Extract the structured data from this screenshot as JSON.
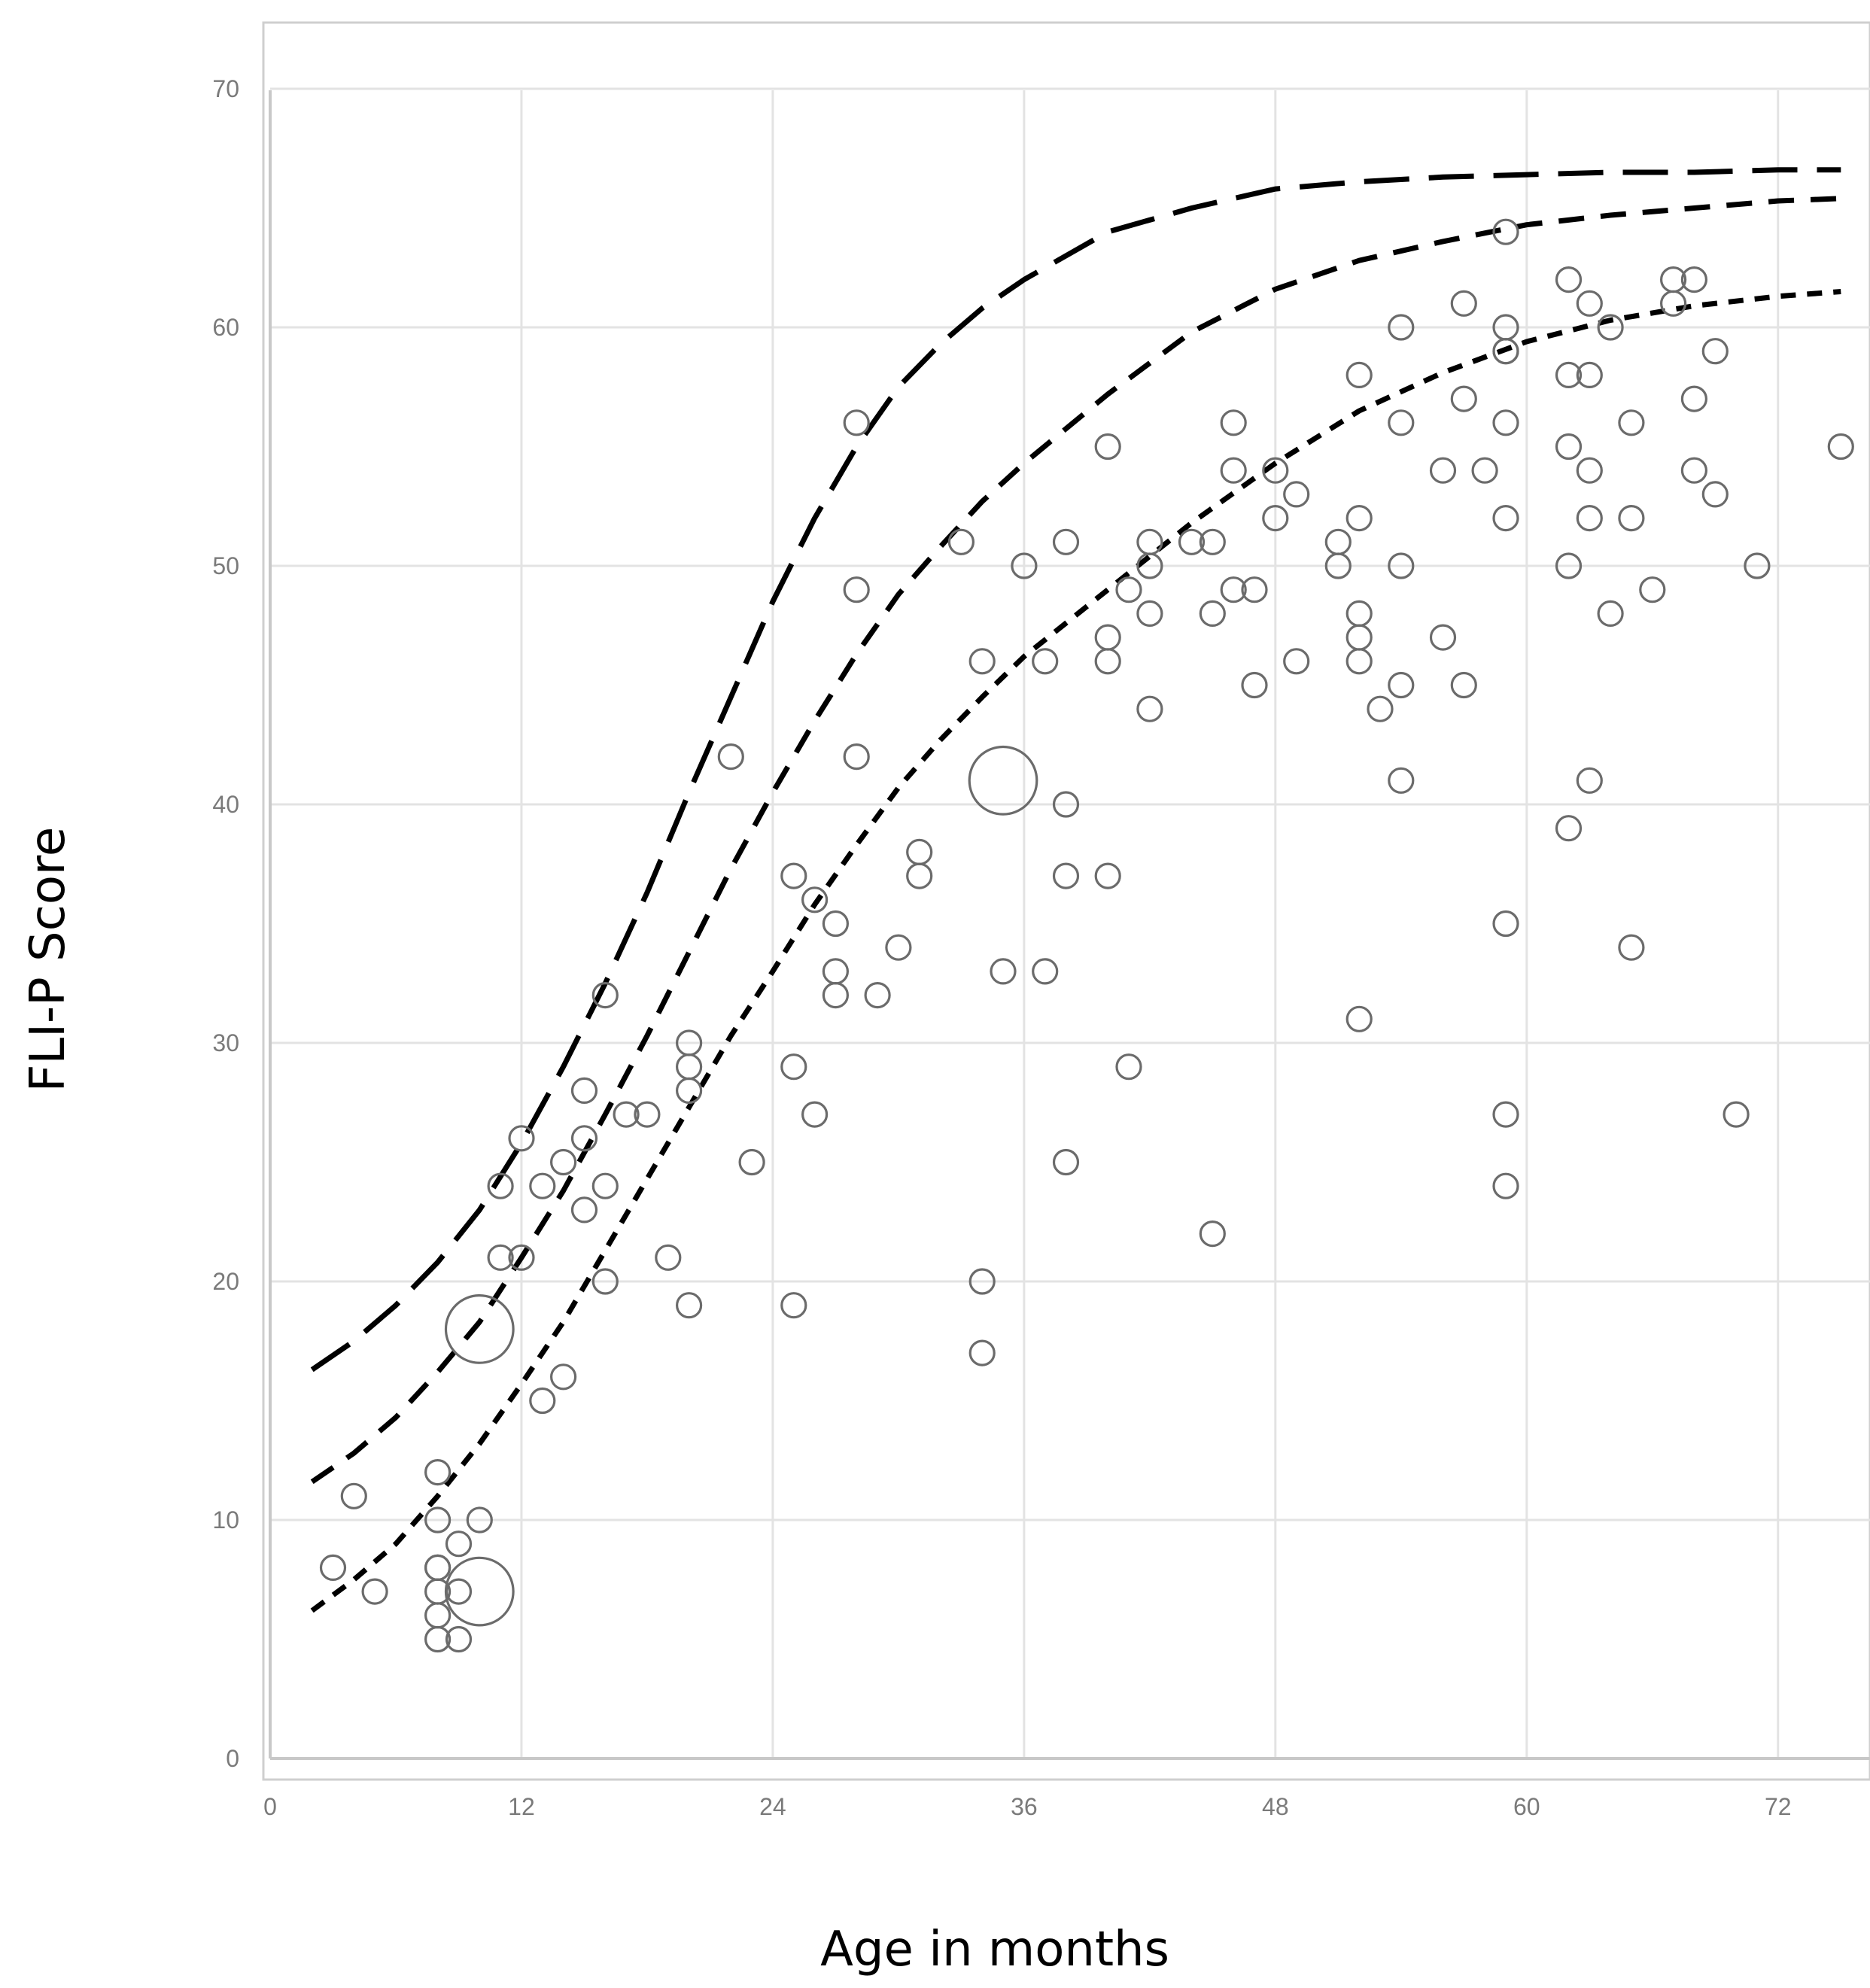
{
  "chart_data": {
    "type": "scatter",
    "title": "",
    "xlabel": "Age in months",
    "ylabel": "FLI-P Score",
    "xlim": [
      0,
      75
    ],
    "ylim": [
      0,
      70
    ],
    "x_ticks": [
      0,
      12,
      24,
      36,
      48,
      60,
      72
    ],
    "y_ticks": [
      0,
      10,
      20,
      30,
      40,
      50,
      60,
      70
    ],
    "grid": true,
    "legend": "none",
    "colors": {
      "marker": "#6b6b6b",
      "curve": "#000000",
      "grid": "#e3e3e3",
      "frame": "#c8c8c8"
    },
    "points": [
      {
        "x": 3,
        "y": 8
      },
      {
        "x": 4,
        "y": 11
      },
      {
        "x": 5,
        "y": 7
      },
      {
        "x": 8,
        "y": 12
      },
      {
        "x": 8,
        "y": 10
      },
      {
        "x": 8,
        "y": 8
      },
      {
        "x": 8,
        "y": 8
      },
      {
        "x": 8,
        "y": 7
      },
      {
        "x": 8,
        "y": 6
      },
      {
        "x": 8,
        "y": 5
      },
      {
        "x": 9,
        "y": 9
      },
      {
        "x": 9,
        "y": 7
      },
      {
        "x": 9,
        "y": 5
      },
      {
        "x": 10,
        "y": 10
      },
      {
        "x": 10,
        "y": 7,
        "size": 3
      },
      {
        "x": 10,
        "y": 18,
        "size": 3
      },
      {
        "x": 11,
        "y": 24
      },
      {
        "x": 11,
        "y": 21
      },
      {
        "x": 12,
        "y": 26
      },
      {
        "x": 12,
        "y": 21
      },
      {
        "x": 13,
        "y": 24
      },
      {
        "x": 13,
        "y": 15
      },
      {
        "x": 14,
        "y": 25
      },
      {
        "x": 14,
        "y": 16
      },
      {
        "x": 15,
        "y": 28
      },
      {
        "x": 15,
        "y": 26
      },
      {
        "x": 15,
        "y": 23
      },
      {
        "x": 16,
        "y": 32
      },
      {
        "x": 16,
        "y": 24
      },
      {
        "x": 16,
        "y": 20
      },
      {
        "x": 17,
        "y": 27
      },
      {
        "x": 18,
        "y": 27
      },
      {
        "x": 19,
        "y": 21
      },
      {
        "x": 20,
        "y": 30
      },
      {
        "x": 20,
        "y": 29
      },
      {
        "x": 20,
        "y": 28
      },
      {
        "x": 20,
        "y": 19
      },
      {
        "x": 22,
        "y": 42
      },
      {
        "x": 23,
        "y": 25
      },
      {
        "x": 25,
        "y": 37
      },
      {
        "x": 25,
        "y": 29
      },
      {
        "x": 25,
        "y": 19
      },
      {
        "x": 26,
        "y": 36
      },
      {
        "x": 26,
        "y": 27
      },
      {
        "x": 27,
        "y": 35
      },
      {
        "x": 27,
        "y": 33
      },
      {
        "x": 27,
        "y": 32
      },
      {
        "x": 28,
        "y": 56
      },
      {
        "x": 28,
        "y": 49
      },
      {
        "x": 28,
        "y": 42
      },
      {
        "x": 29,
        "y": 32
      },
      {
        "x": 30,
        "y": 34
      },
      {
        "x": 31,
        "y": 38
      },
      {
        "x": 31,
        "y": 37
      },
      {
        "x": 33,
        "y": 51
      },
      {
        "x": 34,
        "y": 46
      },
      {
        "x": 34,
        "y": 20
      },
      {
        "x": 34,
        "y": 17
      },
      {
        "x": 35,
        "y": 41,
        "size": 3
      },
      {
        "x": 35,
        "y": 33
      },
      {
        "x": 36,
        "y": 50
      },
      {
        "x": 37,
        "y": 46
      },
      {
        "x": 37,
        "y": 33
      },
      {
        "x": 38,
        "y": 51
      },
      {
        "x": 38,
        "y": 40
      },
      {
        "x": 38,
        "y": 37
      },
      {
        "x": 38,
        "y": 25
      },
      {
        "x": 40,
        "y": 55
      },
      {
        "x": 40,
        "y": 47
      },
      {
        "x": 40,
        "y": 46
      },
      {
        "x": 40,
        "y": 37
      },
      {
        "x": 41,
        "y": 49
      },
      {
        "x": 41,
        "y": 29
      },
      {
        "x": 42,
        "y": 51
      },
      {
        "x": 42,
        "y": 50
      },
      {
        "x": 42,
        "y": 48
      },
      {
        "x": 42,
        "y": 44
      },
      {
        "x": 44,
        "y": 51
      },
      {
        "x": 45,
        "y": 51
      },
      {
        "x": 45,
        "y": 48
      },
      {
        "x": 45,
        "y": 22
      },
      {
        "x": 46,
        "y": 56
      },
      {
        "x": 46,
        "y": 54
      },
      {
        "x": 46,
        "y": 49
      },
      {
        "x": 47,
        "y": 49
      },
      {
        "x": 47,
        "y": 45
      },
      {
        "x": 48,
        "y": 54
      },
      {
        "x": 48,
        "y": 52
      },
      {
        "x": 49,
        "y": 53
      },
      {
        "x": 49,
        "y": 46
      },
      {
        "x": 51,
        "y": 51
      },
      {
        "x": 51,
        "y": 50
      },
      {
        "x": 52,
        "y": 58
      },
      {
        "x": 52,
        "y": 52
      },
      {
        "x": 52,
        "y": 48
      },
      {
        "x": 52,
        "y": 47
      },
      {
        "x": 52,
        "y": 46
      },
      {
        "x": 52,
        "y": 31
      },
      {
        "x": 53,
        "y": 44
      },
      {
        "x": 54,
        "y": 60
      },
      {
        "x": 54,
        "y": 56
      },
      {
        "x": 54,
        "y": 50
      },
      {
        "x": 54,
        "y": 45
      },
      {
        "x": 54,
        "y": 41
      },
      {
        "x": 56,
        "y": 54
      },
      {
        "x": 56,
        "y": 47
      },
      {
        "x": 57,
        "y": 61
      },
      {
        "x": 57,
        "y": 57
      },
      {
        "x": 57,
        "y": 45
      },
      {
        "x": 58,
        "y": 54
      },
      {
        "x": 59,
        "y": 64
      },
      {
        "x": 59,
        "y": 60
      },
      {
        "x": 59,
        "y": 59
      },
      {
        "x": 59,
        "y": 59
      },
      {
        "x": 59,
        "y": 56
      },
      {
        "x": 59,
        "y": 52
      },
      {
        "x": 59,
        "y": 35
      },
      {
        "x": 59,
        "y": 27
      },
      {
        "x": 59,
        "y": 24
      },
      {
        "x": 62,
        "y": 62
      },
      {
        "x": 62,
        "y": 58
      },
      {
        "x": 62,
        "y": 55
      },
      {
        "x": 62,
        "y": 50
      },
      {
        "x": 62,
        "y": 39
      },
      {
        "x": 63,
        "y": 61
      },
      {
        "x": 63,
        "y": 58
      },
      {
        "x": 63,
        "y": 54
      },
      {
        "x": 63,
        "y": 52
      },
      {
        "x": 63,
        "y": 41
      },
      {
        "x": 64,
        "y": 60
      },
      {
        "x": 64,
        "y": 48
      },
      {
        "x": 65,
        "y": 56
      },
      {
        "x": 65,
        "y": 52
      },
      {
        "x": 65,
        "y": 34
      },
      {
        "x": 66,
        "y": 49
      },
      {
        "x": 67,
        "y": 62
      },
      {
        "x": 67,
        "y": 61
      },
      {
        "x": 68,
        "y": 62
      },
      {
        "x": 68,
        "y": 57
      },
      {
        "x": 68,
        "y": 54
      },
      {
        "x": 69,
        "y": 59
      },
      {
        "x": 69,
        "y": 53
      },
      {
        "x": 70,
        "y": 27
      },
      {
        "x": 71,
        "y": 50
      },
      {
        "x": 75,
        "y": 55
      }
    ],
    "curves": [
      {
        "dash": "long",
        "x": [
          2,
          4,
          6,
          8,
          10,
          12,
          14,
          16,
          18,
          20,
          22,
          24,
          26,
          28,
          30,
          32,
          34,
          36,
          40,
          44,
          48,
          52,
          56,
          60,
          64,
          68,
          72,
          75
        ],
        "y": [
          16.3,
          17.5,
          19.0,
          20.8,
          23.0,
          25.8,
          29.0,
          32.5,
          36.3,
          40.5,
          44.5,
          48.5,
          52.0,
          55.0,
          57.5,
          59.3,
          60.8,
          62.0,
          64.0,
          65.0,
          65.8,
          66.1,
          66.3,
          66.4,
          66.5,
          66.5,
          66.6,
          66.6
        ]
      },
      {
        "dash": "medium",
        "x": [
          2,
          4,
          6,
          8,
          10,
          12,
          14,
          16,
          18,
          20,
          22,
          24,
          26,
          28,
          30,
          32,
          34,
          36,
          40,
          44,
          48,
          52,
          56,
          60,
          64,
          68,
          72,
          75
        ],
        "y": [
          11.6,
          12.8,
          14.3,
          16.2,
          18.3,
          21.0,
          23.8,
          27.0,
          30.3,
          33.8,
          37.3,
          40.5,
          43.5,
          46.3,
          48.8,
          50.8,
          52.7,
          54.3,
          57.2,
          59.8,
          61.6,
          62.8,
          63.6,
          64.3,
          64.7,
          65.0,
          65.3,
          65.4
        ]
      },
      {
        "dash": "short",
        "x": [
          2,
          4,
          6,
          8,
          10,
          12,
          14,
          16,
          18,
          20,
          22,
          24,
          26,
          28,
          30,
          32,
          34,
          36,
          38,
          40,
          44,
          48,
          52,
          56,
          60,
          64,
          68,
          72,
          75
        ],
        "y": [
          6.2,
          7.5,
          9.0,
          11.0,
          13.2,
          15.7,
          18.3,
          21.3,
          24.3,
          27.3,
          30.3,
          33.0,
          35.8,
          38.3,
          40.7,
          42.7,
          44.5,
          46.2,
          47.6,
          49.0,
          51.8,
          54.3,
          56.5,
          58.1,
          59.4,
          60.3,
          60.9,
          61.3,
          61.5
        ]
      }
    ]
  }
}
